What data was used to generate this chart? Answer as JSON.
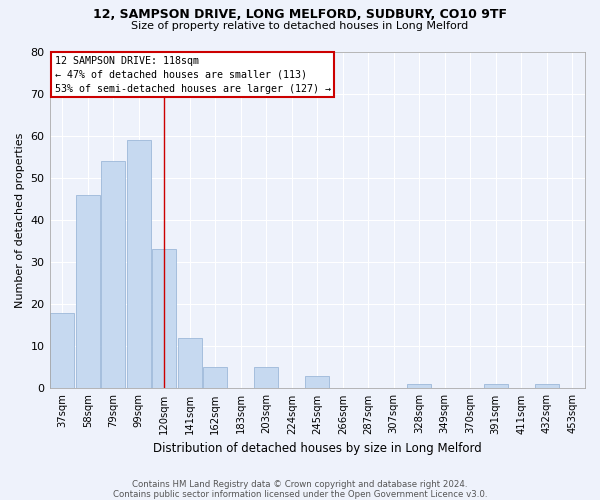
{
  "title1": "12, SAMPSON DRIVE, LONG MELFORD, SUDBURY, CO10 9TF",
  "title2": "Size of property relative to detached houses in Long Melford",
  "xlabel": "Distribution of detached houses by size in Long Melford",
  "ylabel": "Number of detached properties",
  "footnote1": "Contains HM Land Registry data © Crown copyright and database right 2024.",
  "footnote2": "Contains public sector information licensed under the Open Government Licence v3.0.",
  "bar_labels": [
    "37sqm",
    "58sqm",
    "79sqm",
    "99sqm",
    "120sqm",
    "141sqm",
    "162sqm",
    "183sqm",
    "203sqm",
    "224sqm",
    "245sqm",
    "266sqm",
    "287sqm",
    "307sqm",
    "328sqm",
    "349sqm",
    "370sqm",
    "391sqm",
    "411sqm",
    "432sqm",
    "453sqm"
  ],
  "bar_values": [
    18,
    46,
    54,
    59,
    33,
    12,
    5,
    0,
    5,
    0,
    3,
    0,
    0,
    0,
    1,
    0,
    0,
    1,
    0,
    1,
    0
  ],
  "bar_color": "#c6d9f0",
  "bar_edge_color": "#9db8d9",
  "bg_color": "#eef2fb",
  "grid_color": "#ffffff",
  "annotation_border_color": "#cc0000",
  "vline_color": "#cc0000",
  "annotation_text1": "12 SAMPSON DRIVE: 118sqm",
  "annotation_text2": "← 47% of detached houses are smaller (113)",
  "annotation_text3": "53% of semi-detached houses are larger (127) →",
  "ylim": [
    0,
    80
  ],
  "yticks": [
    0,
    10,
    20,
    30,
    40,
    50,
    60,
    70,
    80
  ]
}
